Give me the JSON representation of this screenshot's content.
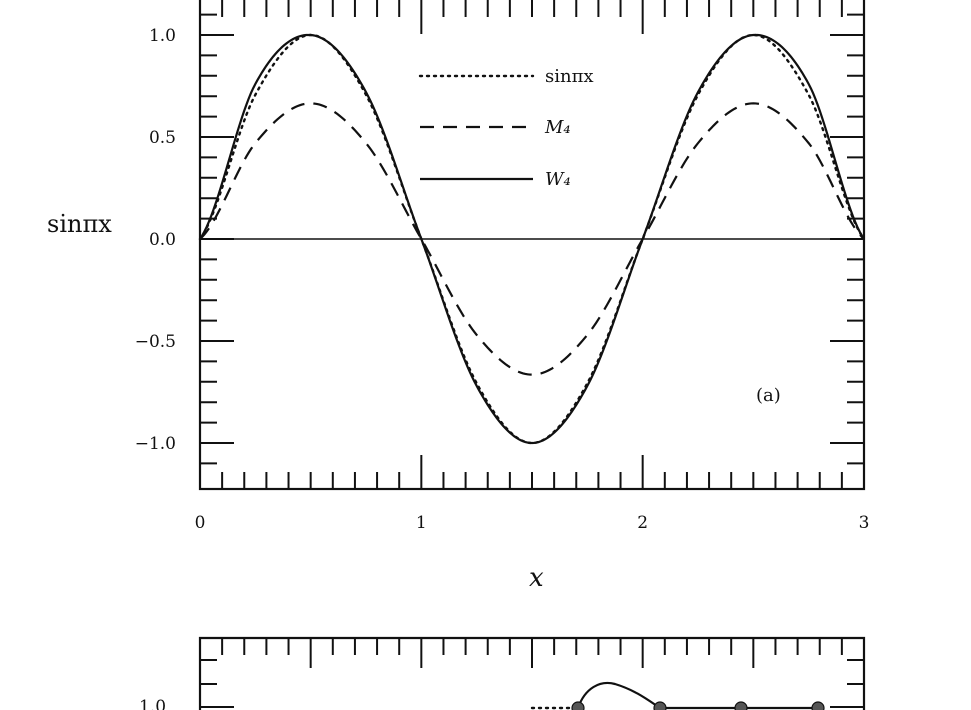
{
  "chart_data": [
    {
      "type": "line",
      "panel_label": "(a)",
      "xlabel": "x",
      "ylabel": "sinπx",
      "xlim": [
        0,
        3
      ],
      "ylim": [
        -1.2,
        1.2
      ],
      "x_ticks": [
        "0",
        "1",
        "2",
        "3"
      ],
      "y_ticks": [
        "1.0",
        "0.5",
        "0.0",
        "−0.5",
        "−1.0"
      ],
      "y_tick_values": [
        1.0,
        0.5,
        0.0,
        -0.5,
        -1.0
      ],
      "x_tick_values": [
        0,
        1,
        2,
        3
      ],
      "legend_position": "top-center",
      "series": [
        {
          "name": "sinπx",
          "style": "dotted",
          "x": [
            0,
            0.25,
            0.5,
            0.75,
            1,
            1.25,
            1.5,
            1.75,
            2,
            2.25,
            2.5,
            2.75,
            3
          ],
          "y": [
            0,
            0.707,
            1.0,
            0.707,
            0,
            -0.707,
            -1.0,
            -0.707,
            0,
            0.707,
            1.0,
            0.707,
            0
          ]
        },
        {
          "name": "M₄",
          "style": "dashed",
          "x": [
            0,
            0.25,
            0.5,
            0.75,
            1,
            1.25,
            1.5,
            1.75,
            2,
            2.25,
            2.5,
            2.75,
            3
          ],
          "y": [
            0,
            0.47,
            0.665,
            0.47,
            0,
            -0.47,
            -0.665,
            -0.47,
            0,
            0.47,
            0.665,
            0.47,
            0
          ]
        },
        {
          "name": "W₄",
          "style": "solid",
          "x": [
            0,
            0.25,
            0.5,
            0.75,
            1,
            1.25,
            1.5,
            1.75,
            2,
            2.25,
            2.5,
            2.75,
            3
          ],
          "y": [
            0,
            0.76,
            1.0,
            0.72,
            0,
            -0.72,
            -1.0,
            -0.72,
            0,
            0.72,
            1.0,
            0.76,
            0
          ]
        }
      ],
      "colors": {
        "ink": "#111111"
      }
    },
    {
      "type": "line",
      "partial": true,
      "y_ticks": [
        "1.0"
      ],
      "y_tick_values": [
        1.0
      ]
    }
  ]
}
